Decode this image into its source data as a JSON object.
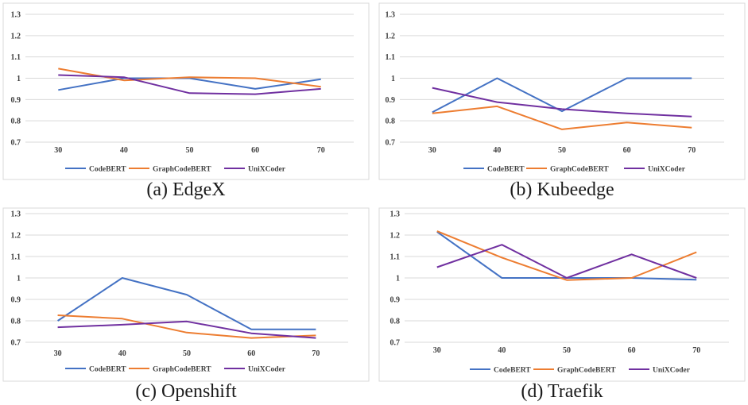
{
  "chart_data": [
    {
      "type": "line",
      "caption": "(a) EdgeX",
      "x": [
        30,
        40,
        50,
        60,
        70
      ],
      "ylim": [
        0.7,
        1.3
      ],
      "yticks": [
        "0.7",
        "0.8",
        "0.9",
        "1",
        "1.1",
        "1.2",
        "1.3"
      ],
      "grid": true,
      "legend_position": "bottom",
      "series": [
        {
          "name": "CodeBERT",
          "color": "#4472c4",
          "values": [
            0.945,
            1.0,
            1.0,
            0.95,
            0.995
          ]
        },
        {
          "name": "GraphCodeBERT",
          "color": "#ed7d31",
          "values": [
            1.045,
            0.99,
            1.005,
            1.0,
            0.96
          ]
        },
        {
          "name": "UniXCoder",
          "color": "#7030a0",
          "values": [
            1.015,
            1.005,
            0.93,
            0.925,
            0.95
          ]
        }
      ]
    },
    {
      "type": "line",
      "caption": "(b) Kubeedge",
      "x": [
        30,
        40,
        50,
        60,
        70
      ],
      "ylim": [
        0.7,
        1.3
      ],
      "yticks": [
        "0.7",
        "0.8",
        "0.9",
        "1",
        "1.1",
        "1.2",
        "1.3"
      ],
      "grid": true,
      "legend_position": "bottom",
      "series": [
        {
          "name": "CodeBERT",
          "color": "#4472c4",
          "values": [
            0.84,
            1.0,
            0.845,
            1.0,
            1.0
          ]
        },
        {
          "name": "GraphCodeBERT",
          "color": "#ed7d31",
          "values": [
            0.835,
            0.868,
            0.76,
            0.792,
            0.768
          ]
        },
        {
          "name": "UniXCoder",
          "color": "#7030a0",
          "values": [
            0.955,
            0.888,
            0.855,
            0.835,
            0.82
          ]
        }
      ]
    },
    {
      "type": "line",
      "caption": "(c) Openshift",
      "x": [
        30,
        40,
        50,
        60,
        70
      ],
      "ylim": [
        0.7,
        1.3
      ],
      "yticks": [
        "0.7",
        "0.8",
        "0.9",
        "1",
        "1.1",
        "1.2",
        "1.3"
      ],
      "grid": true,
      "legend_position": "bottom",
      "series": [
        {
          "name": "CodeBERT",
          "color": "#4472c4",
          "values": [
            0.8,
            1.0,
            0.922,
            0.76,
            0.76
          ]
        },
        {
          "name": "GraphCodeBERT",
          "color": "#ed7d31",
          "values": [
            0.826,
            0.81,
            0.745,
            0.72,
            0.732
          ]
        },
        {
          "name": "UniXCoder",
          "color": "#7030a0",
          "values": [
            0.77,
            0.782,
            0.797,
            0.742,
            0.72
          ]
        }
      ]
    },
    {
      "type": "line",
      "caption": "(d) Traefik",
      "x": [
        30,
        40,
        50,
        60,
        70
      ],
      "ylim": [
        0.7,
        1.3
      ],
      "yticks": [
        "0.7",
        "0.8",
        "0.9",
        "1",
        "1.1",
        "1.2",
        "1.3"
      ],
      "grid": true,
      "legend_position": "bottom",
      "series": [
        {
          "name": "CodeBERT",
          "color": "#4472c4",
          "values": [
            1.215,
            1.0,
            1.0,
            1.0,
            0.992
          ]
        },
        {
          "name": "GraphCodeBERT",
          "color": "#ed7d31",
          "values": [
            1.218,
            1.095,
            0.99,
            1.0,
            1.12
          ]
        },
        {
          "name": "UniXCoder",
          "color": "#7030a0",
          "values": [
            1.05,
            1.155,
            1.0,
            1.11,
            1.0
          ]
        }
      ]
    }
  ]
}
